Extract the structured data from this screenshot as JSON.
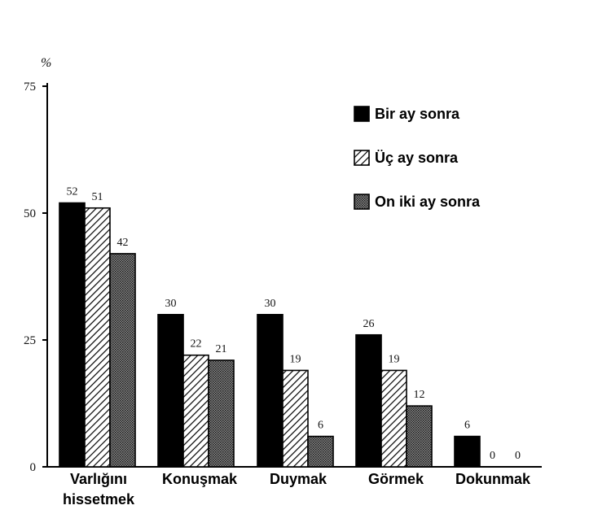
{
  "chart_data": {
    "type": "bar",
    "ylabel": "%",
    "ylim": [
      0,
      75
    ],
    "yticks": [
      0,
      25,
      50,
      75
    ],
    "grid": false,
    "legend_position": "top-right",
    "categories": [
      [
        "Varlığını",
        "hissetmek"
      ],
      [
        "Konuşmak"
      ],
      [
        "Duymak"
      ],
      [
        "Görmek"
      ],
      [
        "Dokunmak"
      ]
    ],
    "series": [
      {
        "name": "Bir ay sonra",
        "fill": "solid",
        "color": "#000000",
        "values": [
          52,
          30,
          30,
          26,
          6
        ]
      },
      {
        "name": "Üç ay sonra",
        "fill": "hatch",
        "color": "#000000",
        "values": [
          51,
          22,
          19,
          19,
          0
        ]
      },
      {
        "name": "On iki ay sonra",
        "fill": "dots",
        "color": "#555555",
        "values": [
          42,
          21,
          6,
          12,
          0
        ]
      }
    ]
  }
}
